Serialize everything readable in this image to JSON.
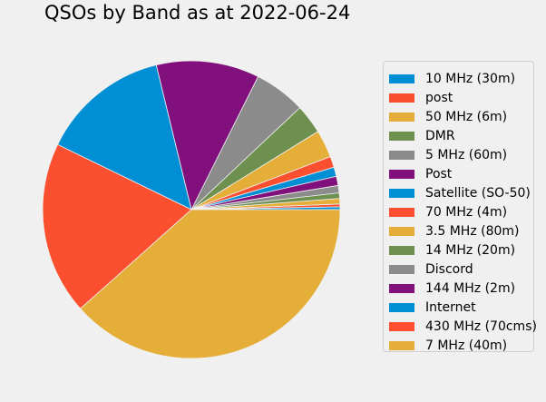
{
  "chart_data": {
    "type": "pie",
    "title": "QSOs by Band as at 2022-06-24",
    "legend_position": "right",
    "start_angle_deg": 0,
    "direction": "counterclockwise",
    "slices": [
      {
        "label": "10 MHz (30m)",
        "value": 0.3,
        "color": "#008fd5"
      },
      {
        "label": "post",
        "value": 0.3,
        "color": "#fc4f30"
      },
      {
        "label": "50 MHz (6m)",
        "value": 0.6,
        "color": "#e5ae38"
      },
      {
        "label": "DMR",
        "value": 0.6,
        "color": "#6d904f"
      },
      {
        "label": "5 MHz (60m)",
        "value": 0.8,
        "color": "#8b8b8b"
      },
      {
        "label": "Post",
        "value": 1.0,
        "color": "#810f7c"
      },
      {
        "label": "Satellite (SO-50)",
        "value": 1.0,
        "color": "#008fd5"
      },
      {
        "label": "70 MHz (4m)",
        "value": 1.2,
        "color": "#fc4f30"
      },
      {
        "label": "3.5 MHz (80m)",
        "value": 3.0,
        "color": "#e5ae38"
      },
      {
        "label": "14 MHz (20m)",
        "value": 3.2,
        "color": "#6d904f"
      },
      {
        "label": "Discord",
        "value": 5.6,
        "color": "#8b8b8b"
      },
      {
        "label": "144 MHz (2m)",
        "value": 11.2,
        "color": "#810f7c"
      },
      {
        "label": "Internet",
        "value": 14.0,
        "color": "#008fd5"
      },
      {
        "label": "430 MHz (70cms)",
        "value": 18.8,
        "color": "#fc4f30"
      },
      {
        "label": "7 MHz (40m)",
        "value": 38.4,
        "color": "#e5ae38"
      }
    ]
  }
}
